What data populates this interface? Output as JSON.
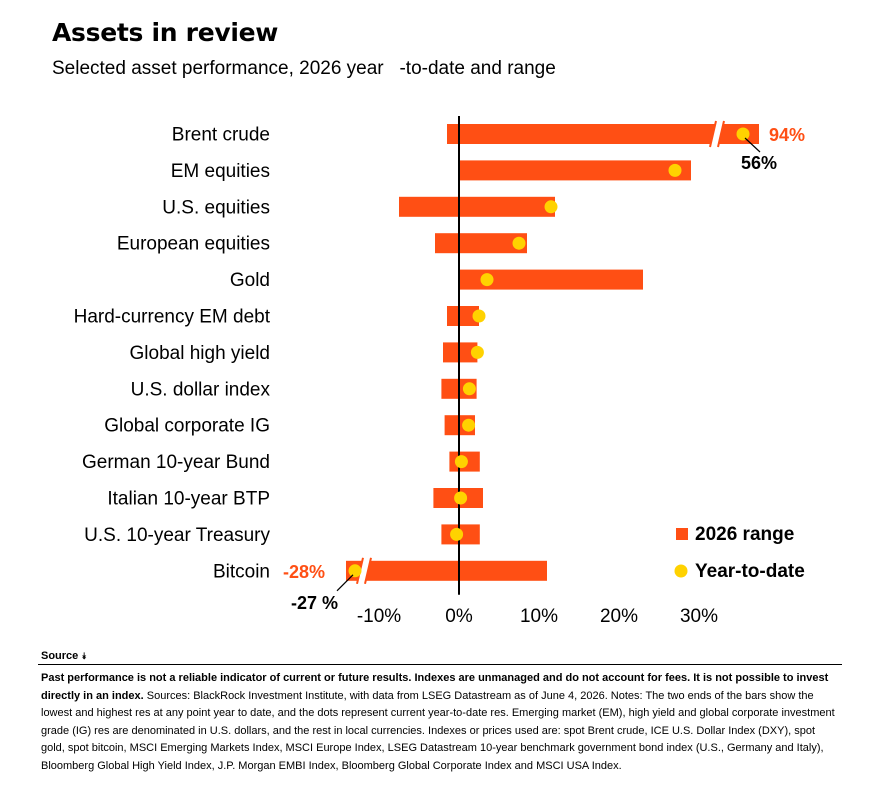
{
  "header": {
    "title": "Assets in review",
    "subtitle": "Selected asset performance, 2026 year   -to-date and range"
  },
  "chart_data": {
    "type": "bar",
    "orientation": "horizontal",
    "series": [
      {
        "name": "2026 range",
        "kind": "range-bar",
        "color": "#FF4F14"
      },
      {
        "name": "Year-to-date",
        "kind": "dot",
        "color": "#FFD200"
      }
    ],
    "categories": [
      {
        "name": "Brent crude",
        "low": -1.5,
        "high": 94,
        "ytd": 56
      },
      {
        "name": "EM equities",
        "low": 0,
        "high": 29,
        "ytd": 27
      },
      {
        "name": "U.S. equities",
        "low": -7.5,
        "high": 12,
        "ytd": 11.5
      },
      {
        "name": "European equities",
        "low": -3,
        "high": 8.5,
        "ytd": 7.5
      },
      {
        "name": "Gold",
        "low": 0,
        "high": 23,
        "ytd": 3.5
      },
      {
        "name": "Hard-currency EM debt",
        "low": -1.5,
        "high": 2.5,
        "ytd": 2.5
      },
      {
        "name": "Global high yield",
        "low": -2,
        "high": 2.3,
        "ytd": 2.3
      },
      {
        "name": "U.S. dollar index",
        "low": -2.2,
        "high": 2.2,
        "ytd": 1.3
      },
      {
        "name": "Global corporate IG",
        "low": -1.8,
        "high": 2,
        "ytd": 1.2
      },
      {
        "name": "German 10-year Bund",
        "low": -1.2,
        "high": 2.6,
        "ytd": 0.3
      },
      {
        "name": "Italian 10-year BTP",
        "low": -3.2,
        "high": 3,
        "ytd": 0.2
      },
      {
        "name": "U.S. 10-year Treasury",
        "low": -2.2,
        "high": 2.6,
        "ytd": -0.3
      },
      {
        "name": "Bitcoin",
        "low": -28,
        "high": 11,
        "ytd": -27
      }
    ],
    "axis": {
      "ticks": [
        "-10%",
        "0%",
        "10%",
        "20%",
        "30%"
      ],
      "tick_values": [
        -10,
        0,
        10,
        20,
        30
      ],
      "xlim": [
        -14,
        36
      ]
    },
    "breaks": [
      "Brent crude",
      "Bitcoin"
    ],
    "callouts": {
      "brent_high": "94%",
      "brent_ytd": "56%",
      "bitcoin_low": "-28%",
      "bitcoin_ytd": "-27 %"
    },
    "legend": {
      "position": "bottom-right",
      "range_label": "2026 range",
      "ytd_label": "Year-to-date"
    }
  },
  "source": {
    "toggle_label": "Source",
    "disclaimer": "Past performance is not a reliable indicator of current or future results. Indexes are unmanaged and do not account for fees. It is not possible to invest directly in an index.",
    "notes": " Sources: BlackRock Investment Institute, with data from LSEG Datastream as of June 4, 2026. Notes: The two ends of the bars show the lowest and highest res at any point year to date, and the dots represent current year-to-date res. Emerging market (EM), high yield and global corporate investment grade (IG) res are denominated in U.S. dollars, and the rest in local currencies. Indexes or prices used are: spot Brent crude, ICE U.S. Dollar Index (DXY), spot gold, spot bitcoin, MSCI Emerging Markets Index, MSCI Europe Index, LSEG Datastream 10-year benchmark government bond index (U.S., Germany and Italy), Bloomberg Global High Yield Index, J.P. Morgan EMBI Index, Bloomberg Global Corporate Index and MSCI USA Index."
  }
}
